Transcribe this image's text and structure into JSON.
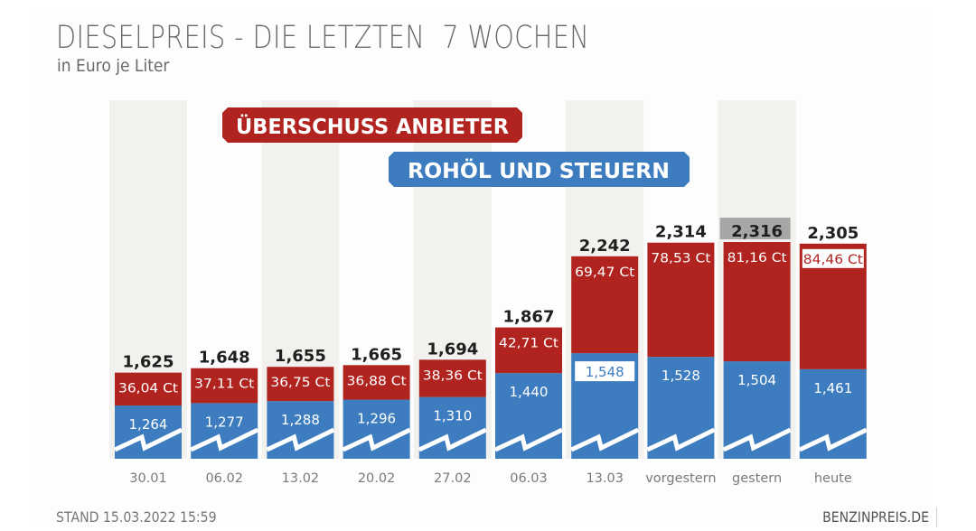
{
  "header": {
    "title": "DIESELPREIS - DIE LETZTEN  7 WOCHEN",
    "subtitle": "in Euro je Liter"
  },
  "footer": {
    "stand": "STAND 15.03.2022 15:59",
    "source": "BENZINPREIS.DE"
  },
  "colors": {
    "margin_red": "#b0231f",
    "base_blue": "#3c7cbf",
    "stripe": "#f2f1ee",
    "highlight_gray": "#a6a6a6",
    "text_dark": "#1f1f1f",
    "axis_text": "#7a7a7a"
  },
  "chart_data": {
    "type": "bar",
    "stacked": true,
    "title": "DIESELPREIS - DIE LETZTEN  7 WOCHEN",
    "subtitle": "in Euro je Liter",
    "xlabel": "",
    "ylabel": "",
    "axis_break": true,
    "grid": false,
    "legend_position": "top-center",
    "categories": [
      "30.01",
      "06.02",
      "13.02",
      "20.02",
      "27.02",
      "06.03",
      "13.03",
      "vorgestern",
      "gestern",
      "heute"
    ],
    "series": [
      {
        "name": "ROHÖL UND STEUERN",
        "unit": "EUR/l",
        "values": [
          1.264,
          1.277,
          1.288,
          1.296,
          1.31,
          1.44,
          1.548,
          1.528,
          1.504,
          1.461
        ],
        "labels": [
          "1,264",
          "1,277",
          "1,288",
          "1,296",
          "1,310",
          "1,440",
          "1,548",
          "1,528",
          "1,504",
          "1,461"
        ]
      },
      {
        "name": "ÜBERSCHUSS ANBIETER",
        "unit": "ct/l",
        "values": [
          36.04,
          37.11,
          36.75,
          36.88,
          38.36,
          42.71,
          69.47,
          78.53,
          81.16,
          84.46
        ],
        "labels": [
          "36,04 Ct",
          "37,11 Ct",
          "36,75 Ct",
          "36,88 Ct",
          "38,36 Ct",
          "42,71 Ct",
          "69,47 Ct",
          "78,53 Ct",
          "81,16 Ct",
          "84,46 Ct"
        ]
      }
    ],
    "totals": [
      1.625,
      1.648,
      1.655,
      1.665,
      1.694,
      1.867,
      2.242,
      2.314,
      2.316,
      2.305
    ],
    "total_labels": [
      "1,625",
      "1,648",
      "1,655",
      "1,665",
      "1,694",
      "1,867",
      "2,242",
      "2,314",
      "2,316",
      "2,305"
    ],
    "highlighted_total_index": 8,
    "boxed_base_label_index": 6,
    "boxed_margin_label_index": 9,
    "legend": [
      {
        "label": "ÜBERSCHUSS ANBIETER",
        "color": "#b0231f"
      },
      {
        "label": "ROHÖL UND STEUERN",
        "color": "#3c7cbf"
      }
    ]
  }
}
